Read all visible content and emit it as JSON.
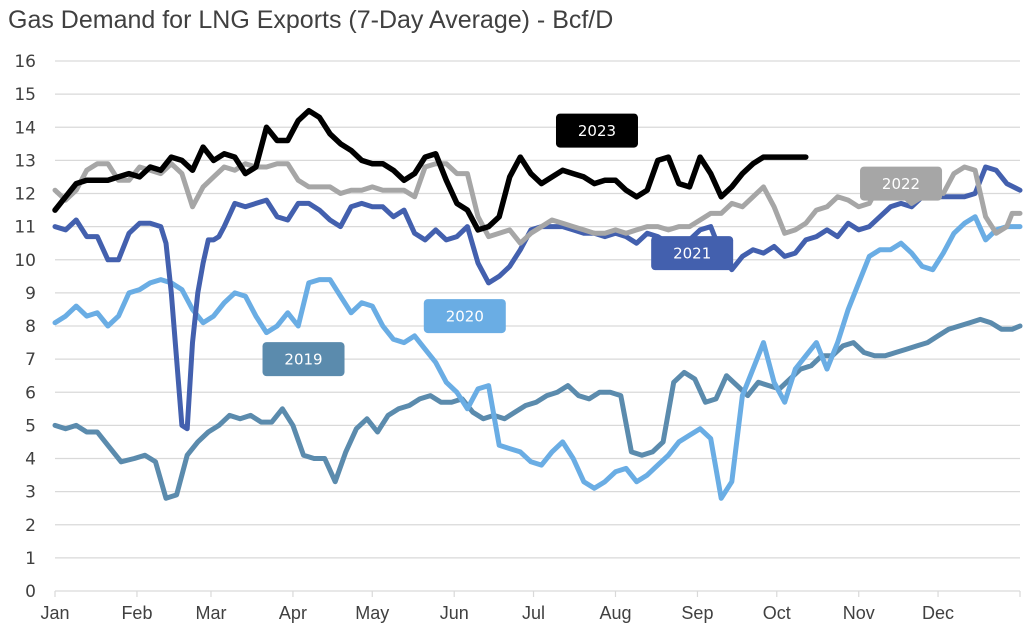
{
  "chart_data": {
    "type": "line",
    "title": "Gas Demand for LNG Exports (7-Day Average) - Bcf/D",
    "xlabel": "",
    "ylabel": "",
    "ylim": [
      0,
      16
    ],
    "yticks": [
      "0",
      "1",
      "2",
      "3",
      "4",
      "5",
      "6",
      "7",
      "8",
      "9",
      "10",
      "11",
      "12",
      "13",
      "14",
      "15",
      "16"
    ],
    "xlim": [
      0,
      365
    ],
    "categories": [
      "Jan",
      "Feb",
      "Mar",
      "Apr",
      "May",
      "Jun",
      "Jul",
      "Aug",
      "Sep",
      "Oct",
      "Nov",
      "Dec"
    ],
    "category_days": [
      0,
      31,
      59,
      90,
      120,
      151,
      181,
      212,
      243,
      273,
      304,
      334
    ],
    "grid": true,
    "legend": "inline-labels",
    "series": [
      {
        "name": "2019",
        "color": "#5B8BAD",
        "x": [
          0,
          4,
          8,
          12,
          16,
          20,
          25,
          30,
          34,
          38,
          42,
          46,
          50,
          54,
          58,
          62,
          66,
          70,
          74,
          78,
          82,
          86,
          90,
          94,
          98,
          102,
          106,
          110,
          114,
          118,
          122,
          126,
          130,
          134,
          138,
          142,
          146,
          150,
          154,
          158,
          162,
          166,
          170,
          174,
          178,
          182,
          186,
          190,
          194,
          198,
          202,
          206,
          210,
          214,
          218,
          222,
          226,
          230,
          234,
          238,
          242,
          246,
          250,
          254,
          258,
          262,
          266,
          270,
          274,
          278,
          282,
          286,
          290,
          294,
          298,
          302,
          306,
          310,
          314,
          318,
          322,
          326,
          330,
          334,
          338,
          342,
          346,
          350,
          354,
          358,
          362,
          365
        ],
        "y": [
          5.0,
          4.9,
          5.0,
          4.8,
          4.8,
          4.4,
          3.9,
          4.0,
          4.1,
          3.9,
          2.8,
          2.9,
          4.1,
          4.5,
          4.8,
          5.0,
          5.3,
          5.2,
          5.3,
          5.1,
          5.1,
          5.5,
          5.0,
          4.1,
          4.0,
          4.0,
          3.3,
          4.2,
          4.9,
          5.2,
          4.8,
          5.3,
          5.5,
          5.6,
          5.8,
          5.9,
          5.7,
          5.7,
          5.8,
          5.4,
          5.2,
          5.3,
          5.2,
          5.4,
          5.6,
          5.7,
          5.9,
          6.0,
          6.2,
          5.9,
          5.8,
          6.0,
          6.0,
          5.9,
          4.2,
          4.1,
          4.2,
          4.5,
          6.3,
          6.6,
          6.4,
          5.7,
          5.8,
          6.5,
          6.2,
          5.9,
          6.3,
          6.2,
          6.1,
          6.4,
          6.7,
          6.8,
          7.1,
          7.1,
          7.4,
          7.5,
          7.2,
          7.1,
          7.1,
          7.2,
          7.3,
          7.4,
          7.5,
          7.7,
          7.9,
          8.0,
          8.1,
          8.2,
          8.1,
          7.9,
          7.9,
          8.0
        ]
      },
      {
        "name": "2020",
        "color": "#6AADE4",
        "x": [
          0,
          4,
          8,
          12,
          16,
          20,
          24,
          28,
          32,
          36,
          40,
          44,
          48,
          52,
          56,
          60,
          64,
          68,
          72,
          76,
          80,
          84,
          88,
          92,
          96,
          100,
          104,
          108,
          112,
          116,
          120,
          124,
          128,
          132,
          136,
          140,
          144,
          148,
          152,
          156,
          160,
          164,
          168,
          172,
          176,
          180,
          184,
          188,
          192,
          196,
          200,
          204,
          208,
          212,
          216,
          220,
          224,
          228,
          232,
          236,
          240,
          244,
          248,
          252,
          256,
          260,
          264,
          268,
          272,
          276,
          280,
          284,
          288,
          292,
          296,
          300,
          304,
          308,
          312,
          316,
          320,
          324,
          328,
          332,
          336,
          340,
          344,
          348,
          352,
          356,
          360,
          365
        ],
        "y": [
          8.1,
          8.3,
          8.6,
          8.3,
          8.4,
          8.0,
          8.3,
          9.0,
          9.1,
          9.3,
          9.4,
          9.3,
          9.1,
          8.5,
          8.1,
          8.3,
          8.7,
          9.0,
          8.9,
          8.3,
          7.8,
          8.0,
          8.4,
          8.0,
          9.3,
          9.4,
          9.4,
          8.9,
          8.4,
          8.7,
          8.6,
          8.0,
          7.6,
          7.5,
          7.7,
          7.3,
          6.9,
          6.3,
          6.0,
          5.5,
          6.1,
          6.2,
          4.4,
          4.3,
          4.2,
          3.9,
          3.8,
          4.2,
          4.5,
          4.0,
          3.3,
          3.1,
          3.3,
          3.6,
          3.7,
          3.3,
          3.5,
          3.8,
          4.1,
          4.5,
          4.7,
          4.9,
          4.6,
          2.8,
          3.3,
          5.9,
          6.7,
          7.5,
          6.3,
          5.7,
          6.7,
          7.1,
          7.5,
          6.7,
          7.5,
          8.5,
          9.3,
          10.1,
          10.3,
          10.3,
          10.5,
          10.2,
          9.8,
          9.7,
          10.2,
          10.8,
          11.1,
          11.3,
          10.6,
          10.9,
          11.0,
          11.0
        ]
      },
      {
        "name": "2021",
        "color": "#4360AE",
        "x": [
          0,
          4,
          8,
          12,
          16,
          20,
          24,
          28,
          32,
          36,
          40,
          42,
          44,
          46,
          48,
          50,
          52,
          54,
          56,
          58,
          60,
          62,
          64,
          68,
          72,
          76,
          80,
          84,
          88,
          92,
          96,
          100,
          104,
          108,
          112,
          116,
          120,
          124,
          128,
          132,
          136,
          140,
          144,
          148,
          152,
          156,
          160,
          164,
          168,
          172,
          176,
          180,
          184,
          188,
          192,
          196,
          200,
          204,
          208,
          212,
          216,
          220,
          224,
          228,
          232,
          236,
          240,
          244,
          248,
          252,
          256,
          260,
          264,
          268,
          272,
          276,
          280,
          284,
          288,
          292,
          296,
          300,
          304,
          308,
          312,
          316,
          320,
          324,
          328,
          332,
          336,
          340,
          344,
          348,
          352,
          356,
          360,
          365
        ],
        "y": [
          11.0,
          10.9,
          11.2,
          10.7,
          10.7,
          10.0,
          10.0,
          10.8,
          11.1,
          11.1,
          11.0,
          10.5,
          9.0,
          7.0,
          5.0,
          4.9,
          7.5,
          9.0,
          9.9,
          10.6,
          10.6,
          10.7,
          11.0,
          11.7,
          11.6,
          11.7,
          11.8,
          11.3,
          11.2,
          11.7,
          11.7,
          11.5,
          11.2,
          11.0,
          11.6,
          11.7,
          11.6,
          11.6,
          11.3,
          11.5,
          10.8,
          10.6,
          10.9,
          10.6,
          10.7,
          11.0,
          9.9,
          9.3,
          9.5,
          9.8,
          10.3,
          10.9,
          11.0,
          11.0,
          11.0,
          10.9,
          10.8,
          10.8,
          10.7,
          10.8,
          10.7,
          10.5,
          10.8,
          10.7,
          10.5,
          10.6,
          10.6,
          10.9,
          11.0,
          10.2,
          9.7,
          10.1,
          10.3,
          10.2,
          10.4,
          10.1,
          10.2,
          10.6,
          10.7,
          10.9,
          10.7,
          11.1,
          10.9,
          11.0,
          11.3,
          11.6,
          11.7,
          11.6,
          11.9,
          11.9,
          11.9,
          11.9,
          11.9,
          12.0,
          12.8,
          12.7,
          12.3,
          12.1
        ]
      },
      {
        "name": "2022",
        "color": "#A6A6A6",
        "x": [
          0,
          4,
          8,
          12,
          16,
          20,
          24,
          28,
          32,
          36,
          40,
          44,
          48,
          52,
          56,
          60,
          64,
          68,
          72,
          76,
          80,
          84,
          88,
          92,
          96,
          100,
          104,
          108,
          112,
          116,
          120,
          124,
          128,
          132,
          136,
          140,
          144,
          148,
          152,
          156,
          160,
          164,
          168,
          172,
          176,
          180,
          184,
          188,
          192,
          196,
          200,
          204,
          208,
          212,
          216,
          220,
          224,
          228,
          232,
          236,
          240,
          244,
          248,
          252,
          256,
          260,
          264,
          268,
          272,
          276,
          280,
          284,
          288,
          292,
          296,
          300,
          304,
          308,
          312,
          316,
          320,
          324,
          328,
          332,
          336,
          340,
          344,
          348,
          352,
          356,
          360,
          362,
          365
        ],
        "y": [
          12.1,
          11.8,
          12.1,
          12.7,
          12.9,
          12.9,
          12.4,
          12.4,
          12.8,
          12.7,
          12.6,
          12.9,
          12.6,
          11.6,
          12.2,
          12.5,
          12.8,
          12.7,
          12.9,
          12.8,
          12.8,
          12.9,
          12.9,
          12.4,
          12.2,
          12.2,
          12.2,
          12.0,
          12.1,
          12.1,
          12.2,
          12.1,
          12.1,
          12.1,
          11.9,
          12.8,
          12.9,
          12.9,
          12.6,
          12.6,
          11.3,
          10.7,
          10.8,
          10.9,
          10.5,
          10.8,
          11.0,
          11.2,
          11.1,
          11.0,
          10.9,
          10.8,
          10.8,
          10.9,
          10.8,
          10.9,
          11.0,
          11.0,
          10.9,
          11.0,
          11.0,
          11.2,
          11.4,
          11.4,
          11.7,
          11.6,
          11.9,
          12.2,
          11.6,
          10.8,
          10.9,
          11.1,
          11.5,
          11.6,
          11.9,
          11.8,
          11.6,
          11.7,
          12.3,
          12.3,
          12.0,
          11.7,
          11.9,
          12.1,
          12.0,
          12.6,
          12.8,
          12.7,
          11.3,
          10.8,
          11.0,
          11.4,
          11.4
        ]
      },
      {
        "name": "2023",
        "color": "#000000",
        "x": [
          0,
          4,
          8,
          12,
          16,
          20,
          24,
          28,
          32,
          36,
          40,
          44,
          48,
          52,
          56,
          60,
          64,
          68,
          72,
          76,
          80,
          84,
          88,
          92,
          96,
          100,
          104,
          108,
          112,
          116,
          120,
          124,
          128,
          132,
          136,
          140,
          144,
          148,
          152,
          156,
          160,
          164,
          168,
          172,
          176,
          180,
          184,
          188,
          192,
          196,
          200,
          204,
          208,
          212,
          216,
          220,
          224,
          228,
          232,
          236,
          240,
          244,
          248,
          252,
          256,
          260,
          264,
          268,
          272,
          276,
          280,
          284
        ],
        "y": [
          11.5,
          11.9,
          12.3,
          12.4,
          12.4,
          12.4,
          12.5,
          12.6,
          12.5,
          12.8,
          12.7,
          13.1,
          13.0,
          12.7,
          13.4,
          13.0,
          13.2,
          13.1,
          12.6,
          12.8,
          14.0,
          13.6,
          13.6,
          14.2,
          14.5,
          14.3,
          13.8,
          13.5,
          13.3,
          13.0,
          12.9,
          12.9,
          12.7,
          12.4,
          12.6,
          13.1,
          13.2,
          12.4,
          11.7,
          11.5,
          10.9,
          11.0,
          11.3,
          12.5,
          13.1,
          12.6,
          12.3,
          12.5,
          12.7,
          12.6,
          12.5,
          12.3,
          12.4,
          12.4,
          12.1,
          11.9,
          12.1,
          13.0,
          13.1,
          12.3,
          12.2,
          13.1,
          12.6,
          11.9,
          12.2,
          12.6,
          12.9,
          13.1,
          13.1,
          13.1,
          13.1,
          13.1
        ]
      }
    ],
    "annotations": [
      {
        "text": "2023",
        "series": "2023",
        "box_color": "#000000",
        "text_color": "#ffffff",
        "anchor_day": 205,
        "anchor_value": 13.9
      },
      {
        "text": "2022",
        "series": "2022",
        "box_color": "#A6A6A6",
        "text_color": "#ffffff",
        "anchor_day": 320,
        "anchor_value": 12.3
      },
      {
        "text": "2021",
        "series": "2021",
        "box_color": "#4360AE",
        "text_color": "#ffffff",
        "anchor_day": 241,
        "anchor_value": 10.2
      },
      {
        "text": "2020",
        "series": "2020",
        "box_color": "#6AADE4",
        "text_color": "#ffffff",
        "anchor_day": 155,
        "anchor_value": 8.3
      },
      {
        "text": "2019",
        "series": "2019",
        "box_color": "#5B8BAD",
        "text_color": "#ffffff",
        "anchor_day": 94,
        "anchor_value": 7.0
      }
    ]
  }
}
